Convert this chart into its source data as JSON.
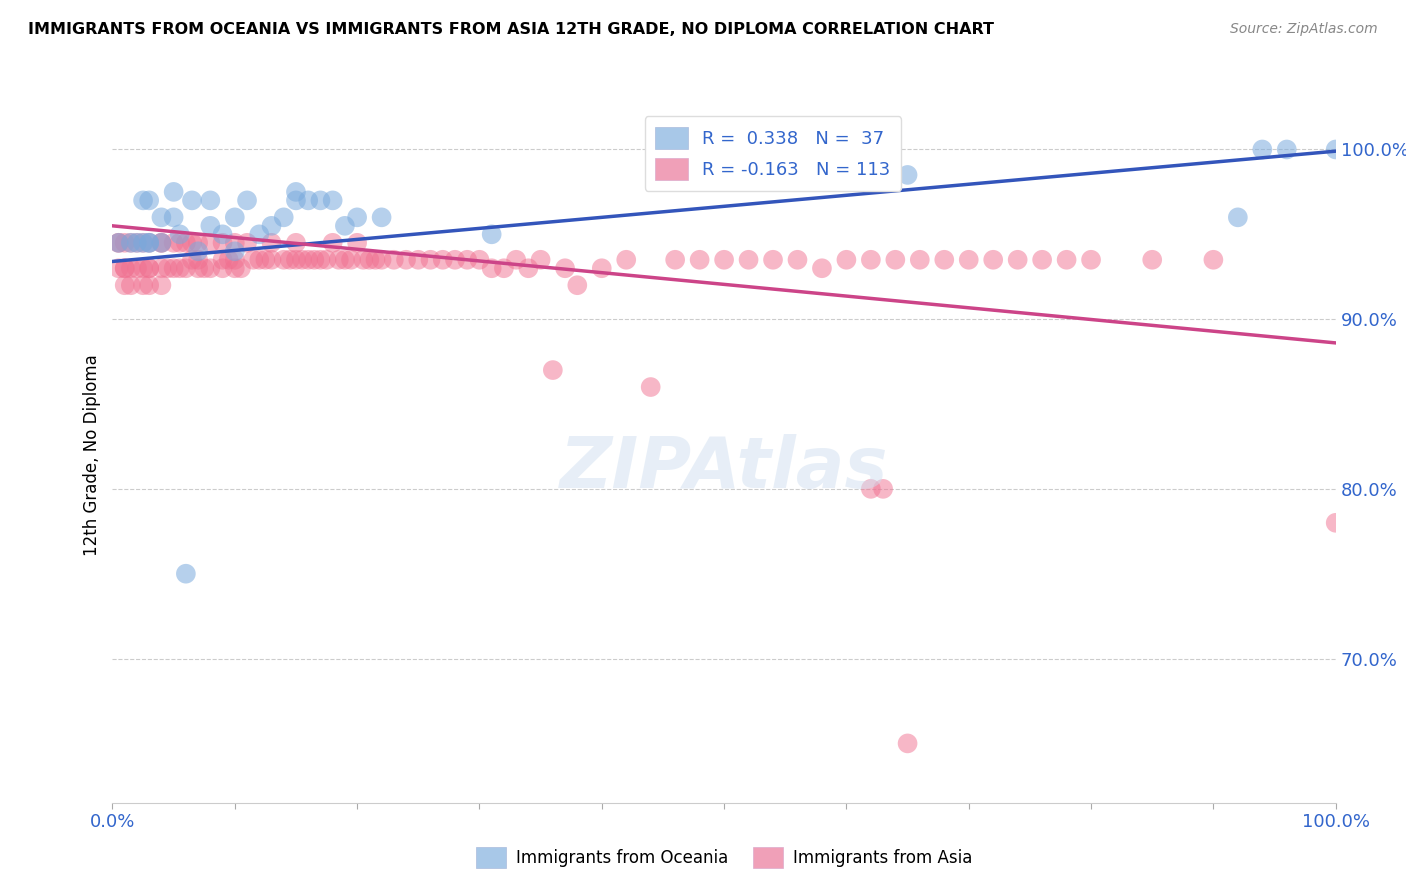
{
  "title": "IMMIGRANTS FROM OCEANIA VS IMMIGRANTS FROM ASIA 12TH GRADE, NO DIPLOMA CORRELATION CHART",
  "source": "Source: ZipAtlas.com",
  "ylabel": "12th Grade, No Diploma",
  "ytick_labels": [
    "100.0%",
    "90.0%",
    "80.0%",
    "70.0%"
  ],
  "ytick_values": [
    1.0,
    0.9,
    0.8,
    0.7
  ],
  "xlim": [
    0.0,
    1.0
  ],
  "ylim": [
    0.615,
    1.025
  ],
  "blue_line_x": [
    0.0,
    1.0
  ],
  "blue_line_y": [
    0.934,
    0.999
  ],
  "pink_line_x": [
    0.0,
    1.0
  ],
  "pink_line_y": [
    0.955,
    0.886
  ],
  "oceania_x": [
    0.005,
    0.015,
    0.02,
    0.025,
    0.025,
    0.03,
    0.03,
    0.03,
    0.04,
    0.04,
    0.05,
    0.05,
    0.055,
    0.06,
    0.065,
    0.07,
    0.08,
    0.08,
    0.09,
    0.1,
    0.1,
    0.11,
    0.12,
    0.13,
    0.14,
    0.15,
    0.15,
    0.16,
    0.17,
    0.18,
    0.19,
    0.2,
    0.22,
    0.31,
    0.63,
    0.65,
    0.92,
    0.94,
    0.96,
    1.0
  ],
  "oceania_y": [
    0.945,
    0.945,
    0.945,
    0.945,
    0.97,
    0.945,
    0.945,
    0.97,
    0.945,
    0.96,
    0.975,
    0.96,
    0.95,
    0.75,
    0.97,
    0.94,
    0.955,
    0.97,
    0.95,
    0.94,
    0.96,
    0.97,
    0.95,
    0.955,
    0.96,
    0.975,
    0.97,
    0.97,
    0.97,
    0.97,
    0.955,
    0.96,
    0.96,
    0.95,
    0.985,
    0.985,
    0.96,
    1.0,
    1.0,
    1.0
  ],
  "asia_x": [
    0.005,
    0.005,
    0.005,
    0.01,
    0.01,
    0.01,
    0.01,
    0.015,
    0.015,
    0.015,
    0.02,
    0.02,
    0.025,
    0.025,
    0.025,
    0.03,
    0.03,
    0.03,
    0.03,
    0.04,
    0.04,
    0.04,
    0.04,
    0.045,
    0.05,
    0.05,
    0.055,
    0.055,
    0.06,
    0.06,
    0.065,
    0.065,
    0.07,
    0.07,
    0.07,
    0.075,
    0.08,
    0.08,
    0.09,
    0.09,
    0.09,
    0.095,
    0.1,
    0.1,
    0.1,
    0.105,
    0.11,
    0.115,
    0.12,
    0.125,
    0.13,
    0.13,
    0.14,
    0.145,
    0.15,
    0.15,
    0.155,
    0.16,
    0.165,
    0.17,
    0.175,
    0.18,
    0.185,
    0.19,
    0.195,
    0.2,
    0.205,
    0.21,
    0.215,
    0.22,
    0.23,
    0.24,
    0.25,
    0.26,
    0.27,
    0.28,
    0.29,
    0.3,
    0.31,
    0.32,
    0.33,
    0.34,
    0.35,
    0.36,
    0.37,
    0.38,
    0.4,
    0.42,
    0.44,
    0.46,
    0.48,
    0.5,
    0.52,
    0.54,
    0.56,
    0.58,
    0.6,
    0.62,
    0.64,
    0.66,
    0.68,
    0.7,
    0.72,
    0.74,
    0.76,
    0.78,
    0.8,
    0.85,
    0.9,
    0.62,
    0.63,
    0.65,
    1.0
  ],
  "asia_y": [
    0.945,
    0.945,
    0.93,
    0.945,
    0.93,
    0.93,
    0.92,
    0.945,
    0.93,
    0.92,
    0.945,
    0.93,
    0.945,
    0.93,
    0.92,
    0.945,
    0.93,
    0.93,
    0.92,
    0.945,
    0.945,
    0.93,
    0.92,
    0.93,
    0.945,
    0.93,
    0.945,
    0.93,
    0.945,
    0.93,
    0.945,
    0.935,
    0.945,
    0.935,
    0.93,
    0.93,
    0.945,
    0.93,
    0.945,
    0.935,
    0.93,
    0.935,
    0.945,
    0.935,
    0.93,
    0.93,
    0.945,
    0.935,
    0.935,
    0.935,
    0.945,
    0.935,
    0.935,
    0.935,
    0.945,
    0.935,
    0.935,
    0.935,
    0.935,
    0.935,
    0.935,
    0.945,
    0.935,
    0.935,
    0.935,
    0.945,
    0.935,
    0.935,
    0.935,
    0.935,
    0.935,
    0.935,
    0.935,
    0.935,
    0.935,
    0.935,
    0.935,
    0.935,
    0.93,
    0.93,
    0.935,
    0.93,
    0.935,
    0.87,
    0.93,
    0.92,
    0.93,
    0.935,
    0.86,
    0.935,
    0.935,
    0.935,
    0.935,
    0.935,
    0.935,
    0.93,
    0.935,
    0.935,
    0.935,
    0.935,
    0.935,
    0.935,
    0.935,
    0.935,
    0.935,
    0.935,
    0.935,
    0.935,
    0.935,
    0.8,
    0.8,
    0.65,
    0.78
  ],
  "oceania_color": "#7aaadd",
  "asia_color": "#f07090",
  "blue_line_color": "#3355bb",
  "pink_line_color": "#cc4488",
  "background_color": "#ffffff",
  "grid_color": "#cccccc",
  "legend_blue_color": "#a8c8e8",
  "legend_pink_color": "#f0a0b8",
  "figsize": [
    14.06,
    8.92
  ],
  "dpi": 100
}
